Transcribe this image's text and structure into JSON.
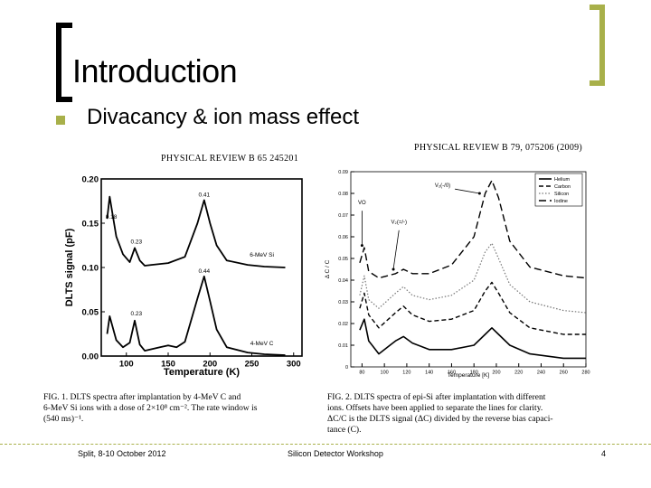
{
  "slide": {
    "title": "Introduction",
    "bullet": "Divacancy & ion mass effect",
    "accent_color": "#a8b04a"
  },
  "figure1": {
    "journal": "PHYSICAL REVIEW B 65 245201",
    "caption_lines": [
      "FIG. 1.  DLTS spectra after implantation by 4-MeV C and",
      "6-MeV Si ions with a dose of 2×10⁸ cm⁻². The rate window is",
      "(540 ms)⁻¹."
    ]
  },
  "figure2": {
    "journal": "PHYSICAL REVIEW B 79, 075206 (2009)",
    "caption_lines": [
      "FIG. 2.  DLTS spectra of epi-Si after implantation with different",
      "ions. Offsets have been applied to separate the lines for clarity.",
      "ΔC/C is the DLTS signal (ΔC) divided by the reverse bias capaci-",
      "tance (C)."
    ]
  },
  "chart_data": [
    {
      "type": "line",
      "xlabel": "Temperature  (K)",
      "ylabel": "DLTS signal  (pF)",
      "xlim": [
        70,
        310
      ],
      "ylim": [
        0.0,
        0.2
      ],
      "x_ticks": [
        "100",
        "150",
        "200",
        "250",
        "300"
      ],
      "y_ticks": [
        "0.00",
        "0.05",
        "0.10",
        "0.15",
        "0.20"
      ],
      "series": [
        {
          "name": "6-MeV Si",
          "x": [
            77,
            80,
            88,
            96,
            104,
            110,
            116,
            122,
            130,
            150,
            170,
            185,
            193,
            200,
            208,
            220,
            245,
            265,
            290
          ],
          "y": [
            0.155,
            0.18,
            0.135,
            0.115,
            0.106,
            0.122,
            0.108,
            0.102,
            0.103,
            0.105,
            0.112,
            0.15,
            0.176,
            0.15,
            0.125,
            0.108,
            0.103,
            0.101,
            0.1
          ]
        },
        {
          "name": "4-MeV C",
          "x": [
            77,
            80,
            88,
            96,
            104,
            110,
            116,
            122,
            140,
            150,
            160,
            170,
            185,
            193,
            200,
            208,
            220,
            245,
            265,
            290
          ],
          "y": [
            0.025,
            0.045,
            0.018,
            0.01,
            0.015,
            0.04,
            0.013,
            0.006,
            0.01,
            0.012,
            0.01,
            0.016,
            0.065,
            0.09,
            0.062,
            0.03,
            0.01,
            0.004,
            0.002,
            0.001
          ]
        }
      ],
      "annotations": [
        {
          "text": "0.41",
          "x": 193,
          "y": 0.18
        },
        {
          "text": "0.18",
          "x": 82,
          "y": 0.155
        },
        {
          "text": "0.23",
          "x": 112,
          "y": 0.127
        },
        {
          "text": "6-MeV Si",
          "x": 262,
          "y": 0.112
        },
        {
          "text": "0.44",
          "x": 193,
          "y": 0.094
        },
        {
          "text": "0.23",
          "x": 112,
          "y": 0.046
        },
        {
          "text": "4-MeV C",
          "x": 262,
          "y": 0.012
        }
      ]
    },
    {
      "type": "line",
      "xlabel": "Temperature [K]",
      "ylabel": "Δ C / C",
      "xlim": [
        70,
        280
      ],
      "ylim": [
        0.0,
        0.09
      ],
      "x_ticks": [
        "80",
        "100",
        "120",
        "140",
        "160",
        "180",
        "200",
        "220",
        "240",
        "260",
        "280"
      ],
      "y_ticks": [
        "0",
        "0.01",
        "0.02",
        "0.03",
        "0.04",
        "0.05",
        "0.06",
        "0.07",
        "0.08",
        "0.09"
      ],
      "legend": "top-right",
      "series": [
        {
          "name": "Helium",
          "x": [
            78,
            82,
            86,
            95,
            110,
            117,
            125,
            140,
            160,
            180,
            190,
            196,
            202,
            212,
            230,
            260,
            280
          ],
          "y": [
            0.017,
            0.022,
            0.012,
            0.006,
            0.012,
            0.014,
            0.011,
            0.008,
            0.008,
            0.01,
            0.015,
            0.018,
            0.015,
            0.01,
            0.006,
            0.004,
            0.004
          ]
        },
        {
          "name": "Carbon",
          "x": [
            78,
            82,
            86,
            95,
            110,
            117,
            125,
            140,
            160,
            180,
            190,
            196,
            202,
            212,
            230,
            260,
            280
          ],
          "y": [
            0.027,
            0.034,
            0.024,
            0.018,
            0.025,
            0.028,
            0.024,
            0.021,
            0.022,
            0.026,
            0.035,
            0.039,
            0.034,
            0.025,
            0.018,
            0.015,
            0.015
          ]
        },
        {
          "name": "Silicon",
          "x": [
            78,
            82,
            86,
            95,
            110,
            117,
            125,
            140,
            160,
            180,
            190,
            196,
            202,
            212,
            230,
            260,
            280
          ],
          "y": [
            0.033,
            0.042,
            0.031,
            0.027,
            0.034,
            0.037,
            0.033,
            0.031,
            0.033,
            0.04,
            0.053,
            0.057,
            0.05,
            0.038,
            0.03,
            0.026,
            0.025
          ]
        },
        {
          "name": "Iodine",
          "x": [
            78,
            82,
            86,
            95,
            110,
            117,
            125,
            140,
            160,
            180,
            190,
            196,
            202,
            212,
            230,
            260,
            280
          ],
          "y": [
            0.048,
            0.055,
            0.044,
            0.041,
            0.043,
            0.045,
            0.043,
            0.043,
            0.047,
            0.06,
            0.08,
            0.086,
            0.078,
            0.058,
            0.046,
            0.042,
            0.041
          ]
        }
      ],
      "annotations": [
        {
          "text": "VO",
          "x": 80,
          "y": 0.075
        },
        {
          "text": "V₂(=/-)",
          "x": 113,
          "y": 0.066
        },
        {
          "text": "V₂(-/0)",
          "x": 152,
          "y": 0.083
        }
      ]
    }
  ],
  "footer": {
    "left": "Split, 8-10 October 2012",
    "center": "Silicon Detector Workshop",
    "page": "4"
  }
}
